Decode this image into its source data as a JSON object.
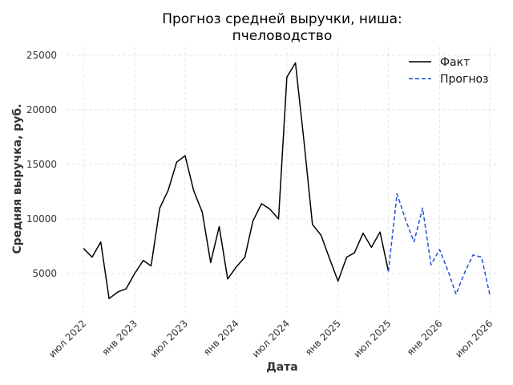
{
  "chart_data": {
    "type": "line",
    "title": [
      "Прогноз средней выручки, ниша:",
      "пчеловодство"
    ],
    "xlabel": "Дата",
    "ylabel": "Средняя выручка, руб.",
    "ylim": [
      1400,
      25800
    ],
    "xlim": [
      "2022-05-01",
      "2026-08-01"
    ],
    "yticks": [
      5000,
      10000,
      15000,
      20000,
      25000
    ],
    "xticks": [
      {
        "date": "2022-07-01",
        "label": "июл 2022"
      },
      {
        "date": "2023-01-01",
        "label": "янв 2023"
      },
      {
        "date": "2023-07-01",
        "label": "июл 2023"
      },
      {
        "date": "2024-01-01",
        "label": "янв 2024"
      },
      {
        "date": "2024-07-01",
        "label": "июл 2024"
      },
      {
        "date": "2025-01-01",
        "label": "янв 2025"
      },
      {
        "date": "2025-07-01",
        "label": "июл 2025"
      },
      {
        "date": "2026-01-01",
        "label": "янв 2026"
      },
      {
        "date": "2026-07-01",
        "label": "июл 2026"
      }
    ],
    "grid": true,
    "legend_position": "top-right",
    "series": [
      {
        "name": "Факт",
        "color": "#000000",
        "style": "solid",
        "x": [
          "2022-07-01",
          "2022-08-01",
          "2022-09-01",
          "2022-10-01",
          "2022-11-01",
          "2022-12-01",
          "2023-01-01",
          "2023-02-01",
          "2023-03-01",
          "2023-04-01",
          "2023-05-01",
          "2023-06-01",
          "2023-07-01",
          "2023-08-01",
          "2023-09-01",
          "2023-10-01",
          "2023-11-01",
          "2023-12-01",
          "2024-01-01",
          "2024-02-01",
          "2024-03-01",
          "2024-04-01",
          "2024-05-01",
          "2024-06-01",
          "2024-07-01",
          "2024-08-01",
          "2024-09-01",
          "2024-10-01",
          "2024-11-01",
          "2024-12-01",
          "2025-01-01",
          "2025-02-01",
          "2025-03-01",
          "2025-04-01",
          "2025-05-01",
          "2025-06-01",
          "2025-07-01"
        ],
        "y": [
          7300,
          6500,
          7900,
          2700,
          3300,
          3600,
          5000,
          6200,
          5700,
          11000,
          12600,
          15200,
          15800,
          12600,
          10600,
          6000,
          9300,
          4500,
          5600,
          6500,
          9800,
          11400,
          10900,
          10000,
          23000,
          24300,
          17000,
          9500,
          8500,
          6400,
          4300,
          6500,
          6900,
          8700,
          7400,
          8800,
          5200
        ]
      },
      {
        "name": "Прогноз",
        "color": "#1f4fd6",
        "style": "dashed",
        "x": [
          "2025-07-01",
          "2025-08-01",
          "2025-09-01",
          "2025-10-01",
          "2025-11-01",
          "2025-12-01",
          "2026-01-01",
          "2026-02-01",
          "2026-03-01",
          "2026-04-01",
          "2026-05-01",
          "2026-06-01",
          "2026-07-01"
        ],
        "y": [
          5200,
          12300,
          9900,
          7900,
          11000,
          5800,
          7200,
          5200,
          3100,
          5100,
          6700,
          6500,
          3000
        ]
      }
    ]
  }
}
